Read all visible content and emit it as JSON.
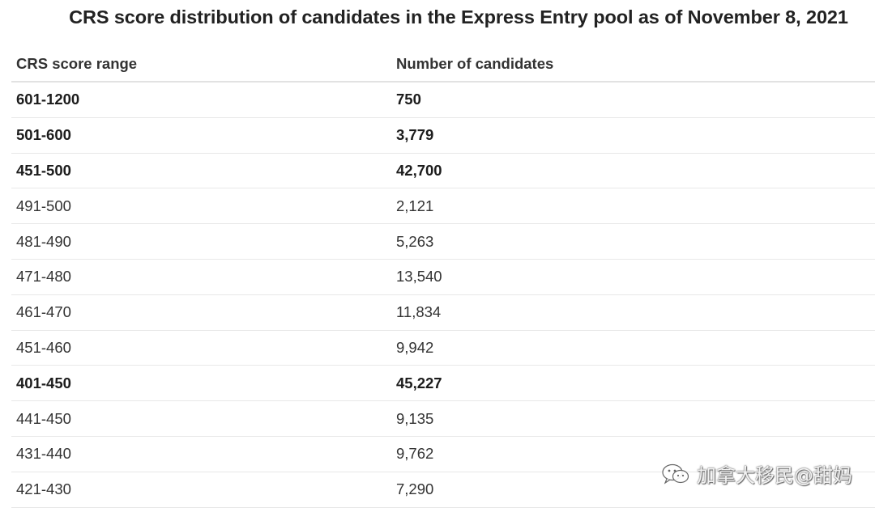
{
  "title": "CRS score distribution of candidates in the Express Entry pool as of November 8, 2021",
  "table": {
    "headers": [
      "CRS score range",
      "Number of candidates"
    ],
    "rows": [
      {
        "range": "601-1200",
        "count": "750",
        "bold": true
      },
      {
        "range": "501-600",
        "count": "3,779",
        "bold": true
      },
      {
        "range": "451-500",
        "count": "42,700",
        "bold": true
      },
      {
        "range": "491-500",
        "count": "2,121",
        "bold": false
      },
      {
        "range": "481-490",
        "count": "5,263",
        "bold": false
      },
      {
        "range": "471-480",
        "count": "13,540",
        "bold": false
      },
      {
        "range": "461-470",
        "count": "11,834",
        "bold": false
      },
      {
        "range": "451-460",
        "count": "9,942",
        "bold": false
      },
      {
        "range": "401-450",
        "count": "45,227",
        "bold": true
      },
      {
        "range": "441-450",
        "count": "9,135",
        "bold": false
      },
      {
        "range": "431-440",
        "count": "9,762",
        "bold": false
      },
      {
        "range": "421-430",
        "count": "7,290",
        "bold": false
      }
    ]
  },
  "watermark": {
    "icon": "wechat-icon",
    "text": "加拿大移民@甜妈"
  }
}
